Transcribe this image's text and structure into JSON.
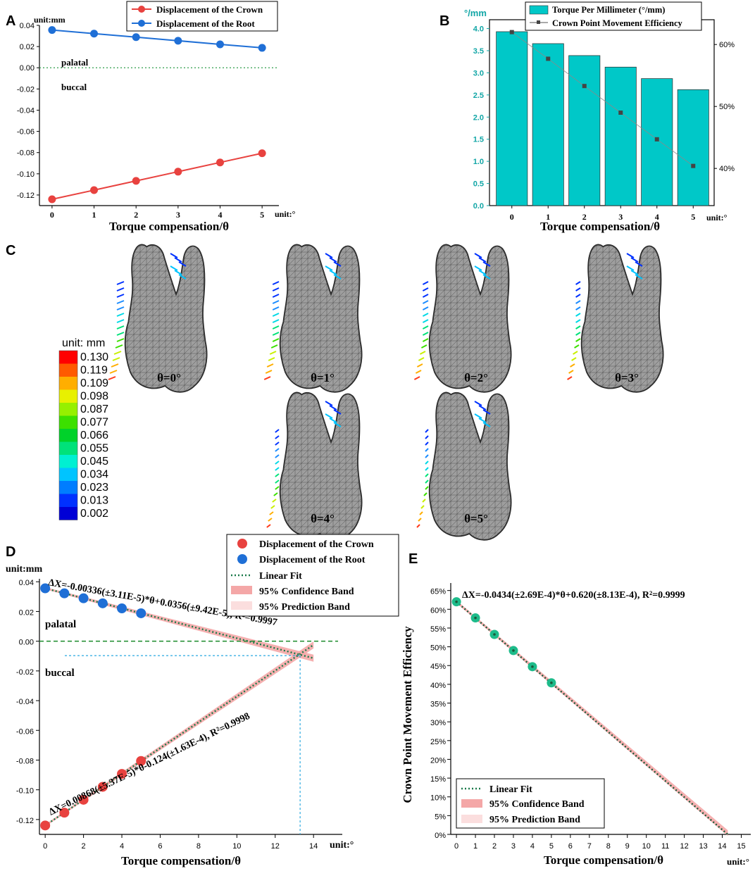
{
  "panels": {
    "A": {
      "letter": "A",
      "unit_y": "unit:mm",
      "unit_x": "unit:°",
      "palatal": "palatal",
      "buccal": "buccal",
      "chart_data": {
        "type": "line",
        "title": "",
        "xlabel": "Torque compensation/θ",
        "ylabel": "",
        "x": [
          0,
          1,
          2,
          3,
          4,
          5
        ],
        "xlim": [
          -0.3,
          5.4
        ],
        "ylim": [
          -0.13,
          0.04
        ],
        "yticks": [
          0.04,
          0.02,
          0.0,
          -0.02,
          -0.04,
          -0.06,
          -0.08,
          -0.1,
          -0.12
        ],
        "ytick_labels": [
          "0.04",
          "0.02",
          "0.00",
          "-0.02",
          "-0.04",
          "-0.06",
          "-0.08",
          "-0.10",
          "-0.12"
        ],
        "xtick_labels": [
          "0",
          "1",
          "2",
          "3",
          "4",
          "5"
        ],
        "zero_line": 0.0,
        "series": [
          {
            "name": "Displacement of the Crown",
            "color": "#e8423f",
            "values": [
              -0.124,
              -0.1154,
              -0.1067,
              -0.098,
              -0.0893,
              -0.0806
            ]
          },
          {
            "name": "Displacement of the Root",
            "color": "#1f6fd6",
            "values": [
              0.0356,
              0.0322,
              0.0289,
              0.0255,
              0.0221,
              0.0188
            ]
          }
        ]
      }
    },
    "B": {
      "letter": "B",
      "unit_left": "°/mm",
      "unit_x": "unit:°",
      "chart_data": {
        "type": "bar",
        "title": "",
        "xlabel": "Torque compensation/θ",
        "categories": [
          "0",
          "1",
          "2",
          "3",
          "4",
          "5"
        ],
        "ylim": [
          0,
          4.2
        ],
        "yticks": [
          0.0,
          0.5,
          1.0,
          1.5,
          2.0,
          2.5,
          3.0,
          3.5,
          4.0
        ],
        "ytick_labels": [
          "0.0",
          "0.5",
          "1.0",
          "1.5",
          "2.0",
          "2.5",
          "3.0",
          "3.5",
          "4.0"
        ],
        "y2lim": [
          0.34,
          0.64
        ],
        "y2ticks": [
          0.4,
          0.5,
          0.6
        ],
        "y2tick_labels": [
          "40%",
          "50%",
          "60%"
        ],
        "series": [
          {
            "name": "Torque Per Millimeter (°/mm)",
            "type": "bar",
            "color": "#00c8c8",
            "values": [
              3.93,
              3.66,
              3.39,
              3.13,
              2.87,
              2.62
            ]
          },
          {
            "name": "Crown Point Movement Efficiency",
            "type": "line",
            "axis": "right",
            "color": "#555555",
            "values": [
              0.62,
              0.577,
              0.533,
              0.49,
              0.447,
              0.404
            ]
          }
        ]
      }
    },
    "C": {
      "letter": "C",
      "colorbar_title": "unit: mm",
      "colorbar": [
        {
          "label": "0.130",
          "color": "#ff0000"
        },
        {
          "label": "0.119",
          "color": "#ff5a00"
        },
        {
          "label": "0.109",
          "color": "#ffae00"
        },
        {
          "label": "0.098",
          "color": "#e8f000"
        },
        {
          "label": "0.087",
          "color": "#96f000"
        },
        {
          "label": "0.077",
          "color": "#3ce000"
        },
        {
          "label": "0.066",
          "color": "#00d22a"
        },
        {
          "label": "0.055",
          "color": "#00e27a"
        },
        {
          "label": "0.045",
          "color": "#00f0d2"
        },
        {
          "label": "0.034",
          "color": "#00c4ff"
        },
        {
          "label": "0.023",
          "color": "#007dff"
        },
        {
          "label": "0.013",
          "color": "#0031ff"
        },
        {
          "label": "0.002",
          "color": "#0000d6"
        }
      ],
      "teeth": [
        {
          "label": "θ=0°"
        },
        {
          "label": "θ=1°"
        },
        {
          "label": "θ=2°"
        },
        {
          "label": "θ=3°"
        },
        {
          "label": "θ=4°"
        },
        {
          "label": "θ=5°"
        }
      ]
    },
    "D": {
      "letter": "D",
      "unit_y": "unit:mm",
      "unit_x": "unit:°",
      "palatal": "palatal",
      "buccal": "buccal",
      "legend": [
        "Displacement of the Crown",
        "Displacement of the Root",
        "Linear Fit",
        "95% Confidence Band",
        "95% Prediction Band"
      ],
      "eq_root": "ΔX=-0.00336(±3.11E-5)*θ+0.0356(±9.42E-5), R²=0.9997",
      "eq_crown": "ΔX=0.00868(±5.37E-5)*θ-0.124(±1.63E-4), R²=0.9998",
      "chart_data": {
        "type": "scatter",
        "title": "",
        "xlabel": "Torque compensation/θ",
        "xlim": [
          -0.3,
          15.5
        ],
        "ylim": [
          -0.13,
          0.042
        ],
        "xticks": [
          0,
          2,
          4,
          6,
          8,
          10,
          12,
          14
        ],
        "xtick_labels": [
          "0",
          "2",
          "4",
          "6",
          "8",
          "10",
          "12",
          "14"
        ],
        "yticks": [
          0.04,
          0.02,
          0.0,
          -0.02,
          -0.04,
          -0.06,
          -0.08,
          -0.1,
          -0.12
        ],
        "ytick_labels": [
          "0.04",
          "0.02",
          "0.00",
          "-0.02",
          "-0.04",
          "-0.06",
          "-0.08",
          "-0.10",
          "-0.12"
        ],
        "x": [
          0,
          1,
          2,
          3,
          4,
          5
        ],
        "series": [
          {
            "name": "Displacement of the Crown",
            "color": "#e8423f",
            "values": [
              -0.124,
              -0.1154,
              -0.1067,
              -0.098,
              -0.0893,
              -0.0806
            ],
            "fit": {
              "slope": 0.00868,
              "intercept": -0.124,
              "x_end": 14
            }
          },
          {
            "name": "Displacement of the Root",
            "color": "#1f6fd6",
            "values": [
              0.0356,
              0.0322,
              0.0289,
              0.0255,
              0.0221,
              0.0188
            ],
            "fit": {
              "slope": -0.00336,
              "intercept": 0.0356,
              "x_end": 14
            }
          }
        ],
        "ref_lines": {
          "zero": 0.0,
          "intersection_y": -0.0097,
          "intersection_x": 13.3
        }
      }
    },
    "E": {
      "letter": "E",
      "unit_x": "unit:°",
      "legend": [
        "Linear Fit",
        "95% Confidence Band",
        "95% Prediction Band"
      ],
      "eq": "ΔX=-0.0434(±2.69E-4)*θ+0.620(±8.13E-4), R²=0.9999",
      "chart_data": {
        "type": "scatter",
        "title": "",
        "xlabel": "Torque compensation/θ",
        "ylabel": "Crown Point Movement Efficiency",
        "xlim": [
          -0.3,
          15.5
        ],
        "ylim": [
          0,
          0.67
        ],
        "xticks": [
          0,
          1,
          2,
          3,
          4,
          5,
          6,
          7,
          8,
          9,
          10,
          11,
          12,
          13,
          14,
          15
        ],
        "xtick_labels": [
          "0",
          "1",
          "2",
          "3",
          "4",
          "5",
          "6",
          "7",
          "8",
          "9",
          "10",
          "11",
          "12",
          "13",
          "14",
          "15"
        ],
        "yticks": [
          0,
          0.05,
          0.1,
          0.15,
          0.2,
          0.25,
          0.3,
          0.35,
          0.4,
          0.45,
          0.5,
          0.55,
          0.6,
          0.65
        ],
        "ytick_labels": [
          "0%",
          "5%",
          "10%",
          "15%",
          "20%",
          "25%",
          "30%",
          "35%",
          "40%",
          "45%",
          "50%",
          "55%",
          "60%",
          "65%"
        ],
        "x": [
          0,
          1,
          2,
          3,
          4,
          5
        ],
        "series": [
          {
            "name": "Crown Point Movement Efficiency",
            "color": "#1dbb8a",
            "values": [
              0.62,
              0.577,
              0.533,
              0.49,
              0.447,
              0.404
            ],
            "fit": {
              "slope": -0.0434,
              "intercept": 0.62,
              "x_end": 14.29
            }
          }
        ]
      }
    }
  }
}
